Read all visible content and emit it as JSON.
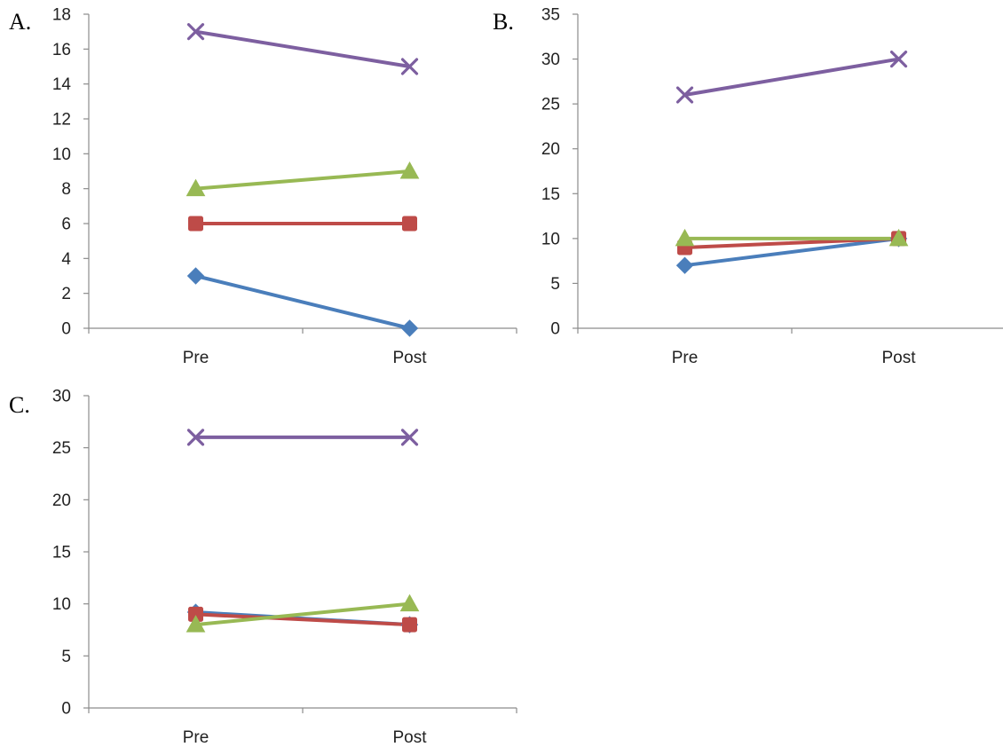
{
  "colors": {
    "blue": "#4a7ebb",
    "red": "#be4b48",
    "green": "#98b954",
    "purple": "#7d5fa0",
    "axis": "#8c8c8c"
  },
  "chart_data": [
    {
      "type": "line",
      "panel_label": "A.",
      "categories": [
        "Pre",
        "Post"
      ],
      "ylim": [
        0,
        18
      ],
      "yticks": [
        0,
        2,
        4,
        6,
        8,
        10,
        12,
        14,
        16,
        18
      ],
      "grid": false,
      "legend": "none",
      "series": [
        {
          "values": [
            3,
            0
          ],
          "marker": "diamond",
          "color": "#4a7ebb"
        },
        {
          "values": [
            6,
            6
          ],
          "marker": "square",
          "color": "#be4b48"
        },
        {
          "values": [
            8,
            9
          ],
          "marker": "triangle",
          "color": "#98b954"
        },
        {
          "values": [
            17,
            15
          ],
          "marker": "x",
          "color": "#7d5fa0"
        }
      ]
    },
    {
      "type": "line",
      "panel_label": "B.",
      "categories": [
        "Pre",
        "Post"
      ],
      "ylim": [
        0,
        35
      ],
      "yticks": [
        0,
        5,
        10,
        15,
        20,
        25,
        30,
        35
      ],
      "grid": false,
      "legend": "none",
      "series": [
        {
          "values": [
            7,
            10
          ],
          "marker": "diamond",
          "color": "#4a7ebb"
        },
        {
          "values": [
            9,
            10
          ],
          "marker": "square",
          "color": "#be4b48"
        },
        {
          "values": [
            10,
            10
          ],
          "marker": "triangle",
          "color": "#98b954"
        },
        {
          "values": [
            26,
            30
          ],
          "marker": "x",
          "color": "#7d5fa0"
        }
      ]
    },
    {
      "type": "line",
      "panel_label": "C.",
      "categories": [
        "Pre",
        "Post"
      ],
      "ylim": [
        0,
        30
      ],
      "yticks": [
        0,
        5,
        10,
        15,
        20,
        25,
        30
      ],
      "grid": false,
      "legend": "none",
      "series": [
        {
          "values": [
            9.2,
            8
          ],
          "marker": "diamond",
          "color": "#4a7ebb"
        },
        {
          "values": [
            9,
            8
          ],
          "marker": "square",
          "color": "#be4b48"
        },
        {
          "values": [
            8,
            10
          ],
          "marker": "triangle",
          "color": "#98b954"
        },
        {
          "values": [
            26,
            26
          ],
          "marker": "x",
          "color": "#7d5fa0"
        }
      ]
    }
  ]
}
